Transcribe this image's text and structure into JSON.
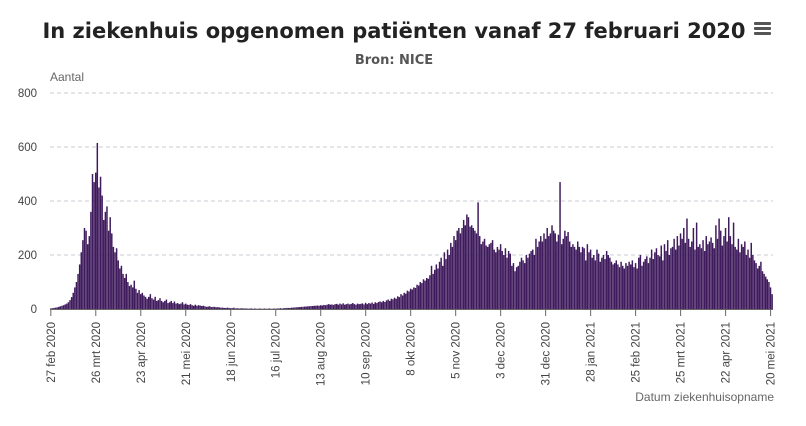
{
  "header": {
    "title": "In ziekenhuis opgenomen patiënten vanaf 27 februari 2020",
    "subtitle": "Bron: NICE"
  },
  "menu": {
    "icon": "hamburger-menu-icon"
  },
  "colors": {
    "bar": "#3f1a5c",
    "grid": "#c8ccd4",
    "axis": "#666666"
  },
  "chart_data": {
    "type": "bar",
    "ylabel": "Aantal",
    "xlabel": "Datum ziekenhuisopname",
    "ylim": [
      0,
      800
    ],
    "yticks": [
      0,
      200,
      400,
      600,
      800
    ],
    "grid": true,
    "x_start": "2020-02-27",
    "x_ticks": [
      {
        "label": "27 feb 2020",
        "date": "2020-02-27"
      },
      {
        "label": "26 mrt 2020",
        "date": "2020-03-26"
      },
      {
        "label": "23 apr 2020",
        "date": "2020-04-23"
      },
      {
        "label": "21 mei 2020",
        "date": "2020-05-21"
      },
      {
        "label": "18 jun 2020",
        "date": "2020-06-18"
      },
      {
        "label": "16 jul 2020",
        "date": "2020-07-16"
      },
      {
        "label": "13 aug 2020",
        "date": "2020-08-13"
      },
      {
        "label": "10 sep 2020",
        "date": "2020-09-10"
      },
      {
        "label": "8 okt 2020",
        "date": "2020-10-08"
      },
      {
        "label": "5 nov 2020",
        "date": "2020-11-05"
      },
      {
        "label": "3 dec 2020",
        "date": "2020-12-03"
      },
      {
        "label": "31 dec 2020",
        "date": "2020-12-31"
      },
      {
        "label": "28 jan 2021",
        "date": "2021-01-28"
      },
      {
        "label": "25 feb 2021",
        "date": "2021-02-25"
      },
      {
        "label": "25 mrt 2021",
        "date": "2021-03-25"
      },
      {
        "label": "22 apr 2021",
        "date": "2021-04-22"
      },
      {
        "label": "20 mei 2021",
        "date": "2021-05-20"
      }
    ],
    "values": [
      2,
      3,
      4,
      5,
      6,
      8,
      10,
      12,
      14,
      17,
      20,
      25,
      33,
      44,
      60,
      80,
      100,
      130,
      165,
      210,
      255,
      300,
      290,
      240,
      270,
      360,
      500,
      470,
      505,
      615,
      450,
      490,
      420,
      330,
      360,
      380,
      290,
      340,
      280,
      230,
      210,
      225,
      180,
      150,
      160,
      130,
      115,
      130,
      100,
      85,
      90,
      80,
      105,
      75,
      60,
      70,
      55,
      60,
      50,
      45,
      38,
      45,
      55,
      40,
      35,
      45,
      30,
      33,
      40,
      30,
      25,
      30,
      35,
      22,
      25,
      30,
      22,
      28,
      20,
      22,
      18,
      20,
      25,
      17,
      20,
      16,
      15,
      18,
      14,
      12,
      16,
      12,
      14,
      13,
      11,
      12,
      10,
      8,
      9,
      10,
      7,
      8,
      8,
      6,
      7,
      6,
      5,
      5,
      4,
      4,
      5,
      4,
      3,
      3,
      5,
      2,
      3,
      2,
      2,
      3,
      2,
      2,
      2,
      1,
      2,
      2,
      1,
      2,
      1,
      1,
      2,
      1,
      1,
      2,
      1,
      1,
      2,
      1,
      1,
      2,
      1,
      2,
      2,
      3,
      2,
      3,
      3,
      4,
      4,
      4,
      5,
      5,
      6,
      6,
      7,
      7,
      8,
      8,
      9,
      9,
      10,
      10,
      11,
      11,
      12,
      12,
      13,
      12,
      14,
      13,
      15,
      14,
      16,
      18,
      16,
      17,
      15,
      18,
      19,
      16,
      20,
      17,
      21,
      16,
      18,
      20,
      17,
      19,
      22,
      18,
      16,
      20,
      18,
      19,
      21,
      17,
      23,
      18,
      22,
      20,
      24,
      19,
      25,
      22,
      26,
      28,
      25,
      30,
      26,
      32,
      35,
      30,
      38,
      36,
      42,
      38,
      47,
      44,
      55,
      50,
      60,
      57,
      68,
      65,
      75,
      72,
      80,
      78,
      90,
      87,
      100,
      96,
      110,
      105,
      115,
      112,
      125,
      160,
      130,
      145,
      165,
      150,
      175,
      190,
      160,
      210,
      185,
      220,
      200,
      245,
      230,
      270,
      255,
      290,
      300,
      280,
      300,
      330,
      310,
      350,
      340,
      305,
      310,
      300,
      290,
      280,
      395,
      270,
      240,
      250,
      260,
      235,
      230,
      240,
      245,
      255,
      220,
      210,
      230,
      220,
      240,
      215,
      200,
      225,
      190,
      215,
      205,
      160,
      170,
      140,
      155,
      160,
      175,
      190,
      180,
      170,
      200,
      190,
      205,
      215,
      220,
      200,
      260,
      230,
      250,
      270,
      250,
      280,
      260,
      300,
      270,
      280,
      310,
      290,
      280,
      250,
      275,
      470,
      240,
      260,
      290,
      270,
      285,
      250,
      230,
      240,
      230,
      220,
      250,
      230,
      210,
      230,
      225,
      180,
      240,
      210,
      220,
      190,
      200,
      180,
      220,
      205,
      175,
      190,
      200,
      185,
      215,
      200,
      190,
      175,
      165,
      170,
      180,
      165,
      155,
      175,
      160,
      150,
      170,
      160,
      175,
      165,
      180,
      155,
      170,
      150,
      190,
      200,
      160,
      175,
      185,
      195,
      170,
      190,
      220,
      185,
      210,
      225,
      200,
      195,
      235,
      180,
      240,
      215,
      255,
      200,
      225,
      230,
      260,
      220,
      270,
      235,
      280,
      260,
      300,
      245,
      335,
      260,
      230,
      250,
      300,
      220,
      320,
      230,
      240,
      225,
      255,
      215,
      270,
      240,
      250,
      265,
      245,
      225,
      310,
      260,
      335,
      290,
      235,
      270,
      300,
      250,
      340,
      270,
      240,
      320,
      230,
      220,
      260,
      210,
      240,
      230,
      250,
      200,
      220,
      190,
      245,
      200,
      180,
      170,
      150,
      160,
      175,
      140,
      130,
      120,
      110,
      100,
      80,
      55
    ]
  }
}
